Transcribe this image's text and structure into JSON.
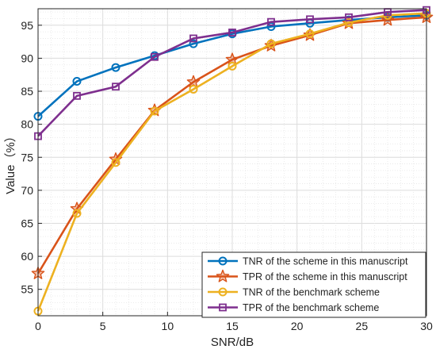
{
  "chart_data": {
    "type": "line",
    "title": "",
    "xlabel": "SNR/dB",
    "ylabel": "Value（%）",
    "xlim": [
      0,
      30
    ],
    "ylim": [
      51,
      97.5
    ],
    "x_ticks": [
      0,
      5,
      10,
      15,
      20,
      25,
      30
    ],
    "y_ticks": [
      55,
      60,
      65,
      70,
      75,
      80,
      85,
      90,
      95
    ],
    "x_tick_labels": [
      "0",
      "5",
      "10",
      "15",
      "20",
      "25",
      "30"
    ],
    "y_tick_labels": [
      "55",
      "60",
      "65",
      "70",
      "75",
      "80",
      "85",
      "90",
      "95"
    ],
    "grid": true,
    "legend_position": "bottom-right",
    "x": [
      0,
      3,
      6,
      9,
      12,
      15,
      18,
      21,
      24,
      27,
      30
    ],
    "series": [
      {
        "name": "TNR of the scheme in this manuscript",
        "marker": "circle",
        "color": "#0072BD",
        "values": [
          81.2,
          86.5,
          88.6,
          90.4,
          92.2,
          93.7,
          94.8,
          95.3,
          95.8,
          96.2,
          96.5
        ]
      },
      {
        "name": "TPR of the scheme in this manuscript",
        "marker": "star",
        "color": "#D95319",
        "values": [
          57.4,
          67.2,
          74.7,
          82.1,
          86.4,
          89.8,
          91.9,
          93.5,
          95.3,
          95.8,
          96.2
        ]
      },
      {
        "name": "TNR of the benchmark scheme",
        "marker": "circle",
        "color": "#EDB120",
        "values": [
          51.7,
          66.5,
          74.2,
          82.0,
          85.3,
          88.8,
          92.2,
          93.7,
          95.4,
          96.5,
          96.8
        ]
      },
      {
        "name": "TPR of the benchmark scheme",
        "marker": "square",
        "color": "#7E2F8E",
        "values": [
          78.2,
          84.3,
          85.7,
          90.2,
          93.0,
          93.9,
          95.5,
          95.9,
          96.2,
          97.0,
          97.3
        ]
      }
    ]
  }
}
